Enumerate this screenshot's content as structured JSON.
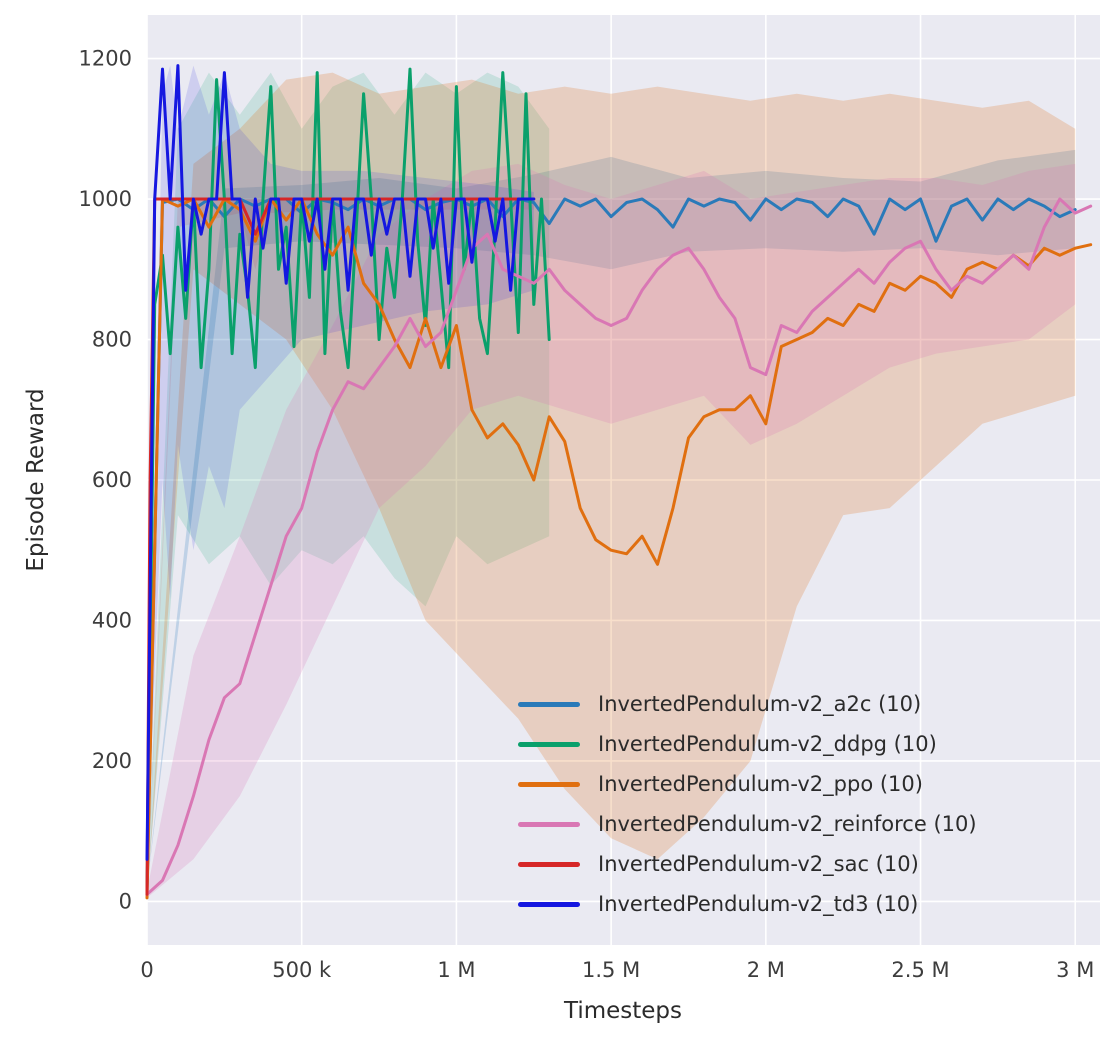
{
  "figure": {
    "background": "#ffffff",
    "plot_background": "#eaeaf2",
    "grid_color": "#ffffff",
    "tick_color": "#3d3d3d"
  },
  "chart_data": {
    "type": "line",
    "title": "",
    "xlabel": "Timesteps",
    "ylabel": "Episode Reward",
    "x_unit": "thousands of timesteps",
    "xlim": [
      0,
      3080
    ],
    "ylim": [
      -62,
      1262
    ],
    "grid": true,
    "legend_position": "lower right",
    "x_ticks": [
      {
        "v": 0,
        "label": "0"
      },
      {
        "v": 500,
        "label": "500 k"
      },
      {
        "v": 1000,
        "label": "1 M"
      },
      {
        "v": 1500,
        "label": "1.5 M"
      },
      {
        "v": 2000,
        "label": "2 M"
      },
      {
        "v": 2500,
        "label": "2.5 M"
      },
      {
        "v": 3000,
        "label": "3 M"
      }
    ],
    "y_ticks": [
      {
        "v": 0,
        "label": "0"
      },
      {
        "v": 200,
        "label": "200"
      },
      {
        "v": 400,
        "label": "400"
      },
      {
        "v": 600,
        "label": "600"
      },
      {
        "v": 800,
        "label": "800"
      },
      {
        "v": 1000,
        "label": "1000"
      },
      {
        "v": 1200,
        "label": "1200"
      }
    ],
    "series": [
      {
        "key": "a2c",
        "name": "InvertedPendulum-v2_a2c (10)",
        "color": "#2a7ab9",
        "band_alpha": 0.22,
        "x": [
          0,
          50,
          100,
          150,
          200,
          250,
          300,
          350,
          400,
          450,
          500,
          550,
          600,
          650,
          700,
          750,
          800,
          850,
          900,
          950,
          1000,
          1050,
          1100,
          1150,
          1200,
          1250,
          1300,
          1350,
          1400,
          1450,
          1500,
          1550,
          1600,
          1650,
          1700,
          1750,
          1800,
          1850,
          1900,
          1950,
          2000,
          2050,
          2100,
          2150,
          2200,
          2250,
          2300,
          2350,
          2400,
          2450,
          2500,
          2550,
          2600,
          2650,
          2700,
          2750,
          2800,
          2850,
          2900,
          2950,
          3000
        ],
        "y": [
          20,
          995,
          1000,
          985,
          1000,
          975,
          1000,
          990,
          1000,
          1000,
          980,
          1000,
          995,
          985,
          1000,
          990,
          1000,
          1000,
          985,
          995,
          1000,
          990,
          1000,
          975,
          1000,
          995,
          965,
          1000,
          990,
          1000,
          975,
          995,
          1000,
          985,
          960,
          1000,
          990,
          1000,
          995,
          970,
          1000,
          985,
          1000,
          995,
          975,
          1000,
          990,
          950,
          1000,
          985,
          1000,
          940,
          990,
          1000,
          970,
          1000,
          985,
          1000,
          990,
          975,
          985
        ],
        "band": {
          "x": [
            0,
            250,
            500,
            750,
            1000,
            1250,
            1500,
            1750,
            2000,
            2250,
            2500,
            2750,
            3000
          ],
          "low": [
            20,
            930,
            940,
            935,
            930,
            920,
            900,
            925,
            930,
            925,
            930,
            920,
            930
          ],
          "high": [
            20,
            1015,
            1020,
            1030,
            1015,
            1035,
            1060,
            1030,
            1040,
            1030,
            1025,
            1055,
            1070
          ]
        }
      },
      {
        "key": "ddpg",
        "name": "InvertedPendulum-v2_ddpg (10)",
        "color": "#0aa06b",
        "band_alpha": 0.15,
        "x": [
          0,
          25,
          50,
          75,
          100,
          125,
          150,
          175,
          200,
          225,
          250,
          275,
          300,
          325,
          350,
          375,
          400,
          425,
          450,
          475,
          500,
          525,
          550,
          575,
          600,
          625,
          650,
          675,
          700,
          725,
          750,
          775,
          800,
          825,
          850,
          875,
          900,
          925,
          950,
          975,
          1000,
          1025,
          1050,
          1075,
          1100,
          1125,
          1150,
          1175,
          1200,
          1225,
          1250,
          1275,
          1300
        ],
        "y": [
          15,
          850,
          920,
          780,
          960,
          830,
          1000,
          760,
          900,
          1170,
          1000,
          780,
          950,
          870,
          760,
          1000,
          1160,
          900,
          960,
          790,
          1000,
          860,
          1180,
          780,
          1000,
          840,
          760,
          950,
          1150,
          1000,
          800,
          930,
          860,
          1000,
          1185,
          940,
          820,
          1000,
          880,
          760,
          1160,
          900,
          1000,
          830,
          780,
          960,
          1180,
          1000,
          810,
          1150,
          850,
          1000,
          800
        ],
        "band": {
          "x": [
            0,
            100,
            200,
            300,
            400,
            500,
            600,
            700,
            800,
            900,
            1000,
            1100,
            1200,
            1300
          ],
          "low": [
            10,
            550,
            480,
            520,
            450,
            500,
            480,
            520,
            460,
            420,
            520,
            480,
            500,
            520
          ],
          "high": [
            20,
            1100,
            1180,
            1120,
            1180,
            1100,
            1160,
            1180,
            1120,
            1180,
            1150,
            1180,
            1160,
            1100
          ]
        }
      },
      {
        "key": "ppo",
        "name": "InvertedPendulum-v2_ppo (10)",
        "color": "#e06f10",
        "band_alpha": 0.22,
        "x": [
          0,
          50,
          100,
          150,
          200,
          250,
          300,
          350,
          400,
          450,
          500,
          550,
          600,
          650,
          700,
          750,
          800,
          850,
          900,
          950,
          1000,
          1050,
          1100,
          1150,
          1200,
          1250,
          1300,
          1350,
          1400,
          1450,
          1500,
          1550,
          1600,
          1650,
          1700,
          1750,
          1800,
          1850,
          1900,
          1950,
          2000,
          2050,
          2100,
          2150,
          2200,
          2250,
          2300,
          2350,
          2400,
          2450,
          2500,
          2550,
          2600,
          2650,
          2700,
          2750,
          2800,
          2850,
          2900,
          2950,
          3000,
          3050
        ],
        "y": [
          5,
          1000,
          990,
          1000,
          960,
          1000,
          985,
          940,
          1000,
          970,
          1000,
          950,
          920,
          960,
          880,
          850,
          800,
          760,
          830,
          760,
          820,
          700,
          660,
          680,
          650,
          600,
          690,
          655,
          560,
          515,
          500,
          495,
          520,
          480,
          560,
          660,
          690,
          700,
          700,
          720,
          680,
          790,
          800,
          810,
          830,
          820,
          850,
          840,
          880,
          870,
          890,
          880,
          860,
          900,
          910,
          900,
          920,
          905,
          930,
          920,
          930,
          935
        ],
        "band": {
          "x": [
            0,
            150,
            300,
            450,
            600,
            750,
            900,
            1050,
            1200,
            1350,
            1500,
            1650,
            1800,
            1950,
            2100,
            2250,
            2400,
            2550,
            2700,
            2850,
            3000
          ],
          "low": [
            5,
            900,
            850,
            800,
            700,
            560,
            400,
            330,
            260,
            160,
            90,
            60,
            120,
            200,
            420,
            550,
            560,
            620,
            680,
            700,
            720
          ],
          "high": [
            5,
            1050,
            1100,
            1170,
            1180,
            1150,
            1160,
            1170,
            1150,
            1160,
            1150,
            1160,
            1150,
            1140,
            1150,
            1140,
            1150,
            1140,
            1130,
            1140,
            1100
          ]
        }
      },
      {
        "key": "reinforce",
        "name": "InvertedPendulum-v2_reinforce (10)",
        "color": "#d977b4",
        "band_alpha": 0.22,
        "x": [
          0,
          50,
          100,
          150,
          200,
          250,
          300,
          350,
          400,
          450,
          500,
          550,
          600,
          650,
          700,
          750,
          800,
          850,
          900,
          950,
          1000,
          1050,
          1100,
          1150,
          1200,
          1250,
          1300,
          1350,
          1400,
          1450,
          1500,
          1550,
          1600,
          1650,
          1700,
          1750,
          1800,
          1850,
          1900,
          1950,
          2000,
          2050,
          2100,
          2150,
          2200,
          2250,
          2300,
          2350,
          2400,
          2450,
          2500,
          2550,
          2600,
          2650,
          2700,
          2750,
          2800,
          2850,
          2900,
          2950,
          3000,
          3050
        ],
        "y": [
          10,
          30,
          80,
          150,
          230,
          290,
          310,
          380,
          450,
          520,
          560,
          640,
          700,
          740,
          730,
          760,
          790,
          830,
          790,
          810,
          870,
          930,
          950,
          900,
          890,
          880,
          900,
          870,
          850,
          830,
          820,
          830,
          870,
          900,
          920,
          930,
          900,
          860,
          830,
          760,
          750,
          820,
          810,
          840,
          860,
          880,
          900,
          880,
          910,
          930,
          940,
          900,
          870,
          890,
          880,
          900,
          920,
          900,
          960,
          1000,
          980,
          990
        ],
        "band": {
          "x": [
            0,
            150,
            300,
            450,
            600,
            750,
            900,
            1050,
            1200,
            1350,
            1500,
            1650,
            1800,
            1950,
            2100,
            2250,
            2400,
            2550,
            2700,
            2850,
            3000
          ],
          "low": [
            5,
            60,
            150,
            280,
            420,
            560,
            620,
            700,
            720,
            700,
            680,
            700,
            720,
            650,
            680,
            720,
            760,
            780,
            790,
            800,
            850
          ],
          "high": [
            15,
            350,
            520,
            700,
            820,
            950,
            1000,
            1040,
            1050,
            1020,
            1000,
            1020,
            1040,
            1000,
            1010,
            1020,
            1030,
            1030,
            1020,
            1040,
            1050
          ]
        }
      },
      {
        "key": "sac",
        "name": "InvertedPendulum-v2_sac (10)",
        "color": "#d62728",
        "band_alpha": 0.12,
        "x": [
          0,
          10,
          25,
          50,
          100,
          150,
          200,
          250,
          300,
          350,
          400,
          450,
          500,
          550,
          600,
          650,
          700,
          750,
          800,
          850,
          900,
          950,
          1000,
          1050,
          1100,
          1150,
          1200,
          1250
        ],
        "y": [
          10,
          600,
          1000,
          1000,
          1000,
          1000,
          1000,
          1000,
          1000,
          950,
          1000,
          1000,
          1000,
          1000,
          1000,
          1000,
          1000,
          1000,
          1000,
          1000,
          1000,
          1000,
          1000,
          1000,
          1000,
          1000,
          1000,
          1000
        ],
        "band": {
          "x": [
            0,
            100,
            300,
            350,
            400,
            600,
            900,
            1250
          ],
          "low": [
            5,
            960,
            980,
            900,
            980,
            985,
            985,
            985
          ],
          "high": [
            15,
            1000,
            1000,
            1000,
            1000,
            1000,
            1000,
            1000
          ]
        }
      },
      {
        "key": "td3",
        "name": "InvertedPendulum-v2_td3 (10)",
        "color": "#1517e0",
        "band_alpha": 0.13,
        "x": [
          0,
          25,
          50,
          75,
          100,
          125,
          150,
          175,
          200,
          225,
          250,
          275,
          300,
          325,
          350,
          375,
          400,
          425,
          450,
          475,
          500,
          525,
          550,
          575,
          600,
          625,
          650,
          675,
          700,
          725,
          750,
          775,
          800,
          825,
          850,
          875,
          900,
          925,
          950,
          975,
          1000,
          1025,
          1050,
          1075,
          1100,
          1125,
          1150,
          1175,
          1200,
          1225,
          1250
        ],
        "y": [
          60,
          1000,
          1185,
          1000,
          1190,
          870,
          1000,
          950,
          1000,
          1000,
          1180,
          1000,
          1000,
          860,
          1000,
          930,
          1000,
          1000,
          880,
          1000,
          1000,
          940,
          1000,
          900,
          1000,
          1000,
          870,
          1000,
          1000,
          920,
          1000,
          950,
          1000,
          1000,
          890,
          1000,
          1000,
          930,
          1000,
          880,
          1000,
          1000,
          910,
          1000,
          1000,
          940,
          1000,
          870,
          1000,
          1000,
          1000
        ],
        "band": {
          "x": [
            0,
            50,
            75,
            100,
            150,
            200,
            250,
            300,
            400,
            500,
            700,
            900,
            1100,
            1250
          ],
          "low": [
            50,
            600,
            430,
            650,
            500,
            620,
            560,
            700,
            750,
            800,
            820,
            840,
            850,
            870
          ],
          "high": [
            70,
            1150,
            1190,
            1100,
            1190,
            1120,
            1180,
            1100,
            1050,
            1040,
            1040,
            1030,
            1020,
            1010
          ]
        }
      }
    ]
  }
}
